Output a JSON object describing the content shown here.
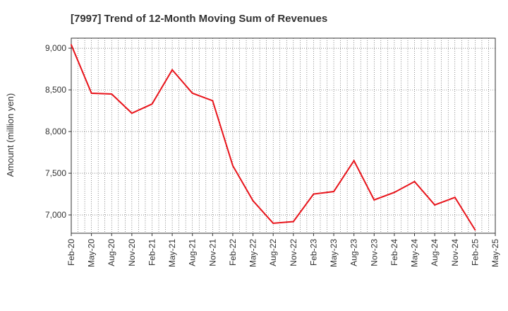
{
  "chart_data": {
    "type": "line",
    "title": "[7997]  Trend of 12-Month Moving Sum of Revenues",
    "xlabel": "",
    "ylabel": "Amount (million yen)",
    "x_tick_labels": [
      "Feb-20",
      "May-20",
      "Aug-20",
      "Nov-20",
      "Feb-21",
      "May-21",
      "Aug-21",
      "Nov-21",
      "Feb-22",
      "May-22",
      "Aug-22",
      "Nov-22",
      "Feb-23",
      "May-23",
      "Aug-23",
      "Nov-23",
      "Feb-24",
      "May-24",
      "Aug-24",
      "Nov-24",
      "Feb-25",
      "May-25"
    ],
    "y_ticks": [
      7000,
      7500,
      8000,
      8500,
      9000
    ],
    "y_tick_labels": [
      "7,000",
      "7,500",
      "8,000",
      "8,500",
      "9,000"
    ],
    "ylim": [
      6780,
      9120
    ],
    "grid": true,
    "legend": "none",
    "series": [
      {
        "color": "#e8141b",
        "x": [
          "Feb-20",
          "May-20",
          "Aug-20",
          "Nov-20",
          "Feb-21",
          "May-21",
          "Aug-21",
          "Nov-21",
          "Feb-22",
          "May-22",
          "Aug-22",
          "Nov-22",
          "Feb-23",
          "May-23",
          "Aug-23",
          "Nov-23",
          "Feb-24",
          "May-24",
          "Aug-24",
          "Nov-24",
          "Feb-25"
        ],
        "values": [
          9040,
          8460,
          8450,
          8220,
          8330,
          8740,
          8460,
          8370,
          7590,
          7170,
          6900,
          6920,
          7250,
          7280,
          7650,
          7180,
          7270,
          7400,
          7120,
          7210,
          6820
        ]
      }
    ]
  }
}
